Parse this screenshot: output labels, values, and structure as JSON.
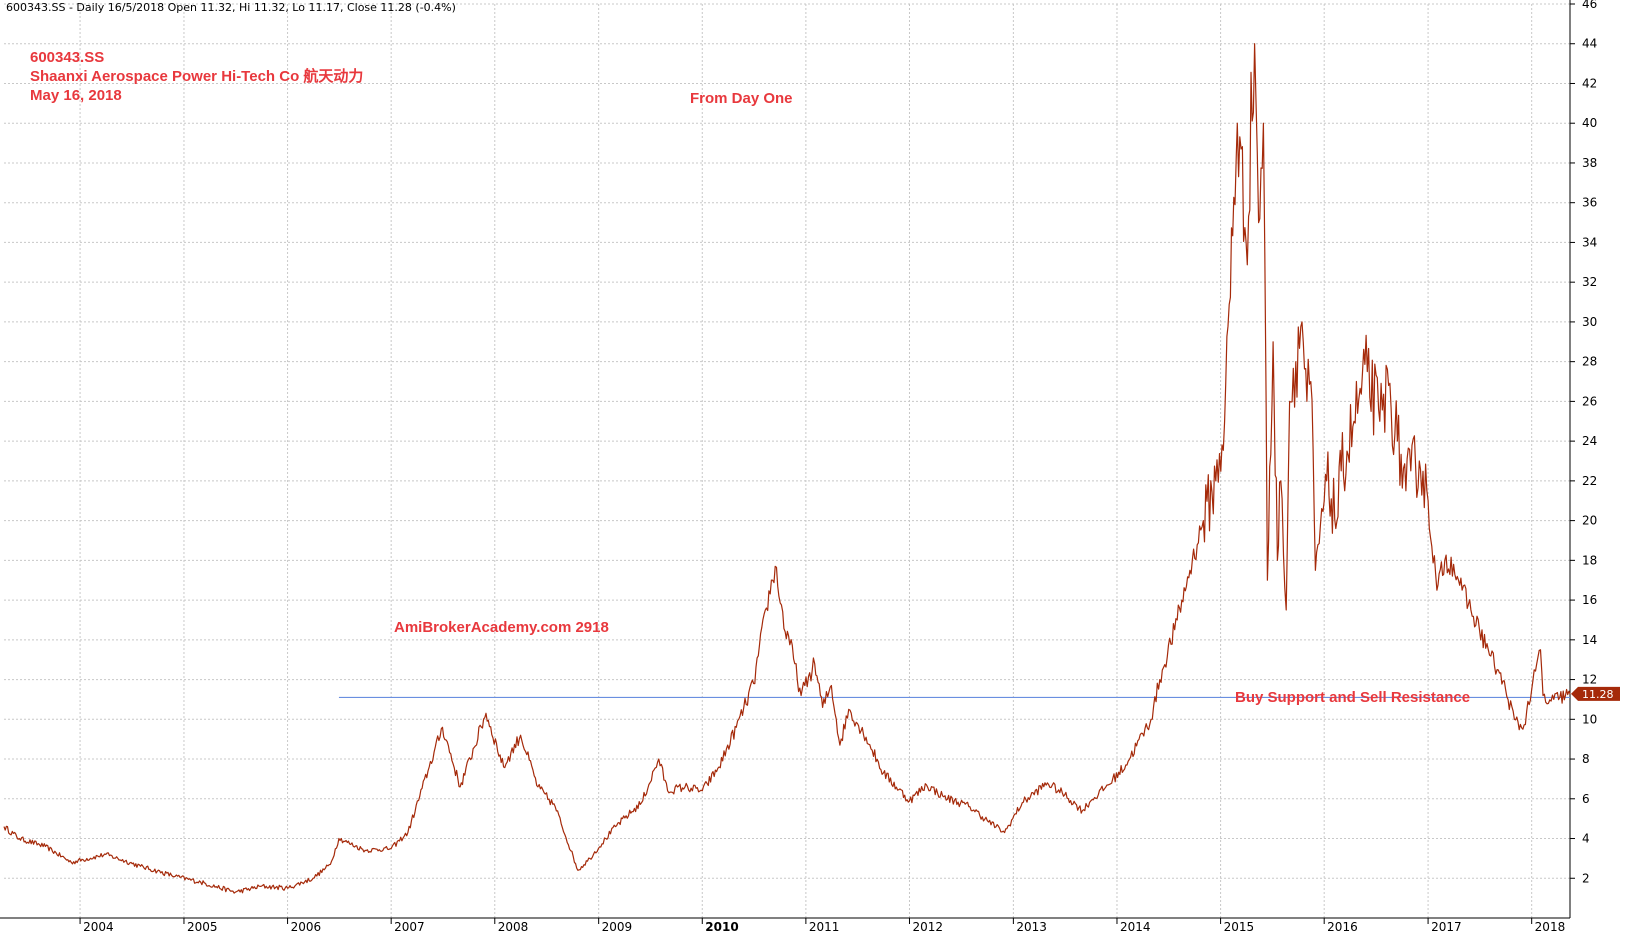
{
  "header": {
    "info": "600343.SS - Daily 16/5/2018 Open 11.32, Hi 11.32, Lo 11.17, Close 11.28 (-0.4%)"
  },
  "annotations": {
    "ticker": "600343.SS",
    "company": "Shaanxi Aerospace Power Hi-Tech Co  航天动力",
    "date": "May 16, 2018",
    "from_day_one": "From Day One",
    "site": "AmiBrokerAcademy.com   2918",
    "support_note": "Buy Support and Sell Resistance"
  },
  "colors": {
    "price_line": "#a52a0a",
    "annotation_red": "#e8383d",
    "support_line": "#6a8fe0",
    "grid": "#c8c8c8",
    "price_badge": "#a52a0a"
  },
  "chart_data": {
    "type": "line",
    "title": "",
    "xlabel": "",
    "ylabel": "",
    "ylim": [
      0,
      46
    ],
    "y_ticks": [
      2,
      4,
      6,
      8,
      10,
      12,
      14,
      16,
      18,
      20,
      22,
      24,
      26,
      28,
      30,
      32,
      34,
      36,
      38,
      40,
      42,
      44,
      46
    ],
    "x_ticks": [
      "2004",
      "2005",
      "2006",
      "2007",
      "2008",
      "2009",
      "2010",
      "2011",
      "2012",
      "2013",
      "2014",
      "2015",
      "2016",
      "2017",
      "2018"
    ],
    "x_range": [
      "2003-04-08",
      "2018-05-16"
    ],
    "grid": true,
    "last_price": "11.28",
    "support_level": 11.1,
    "support_start": "2006-07-01",
    "series": [
      {
        "x": [
          "2003-04-08",
          "2003-06-01",
          "2003-09-01",
          "2003-12-01",
          "2004-04-01",
          "2004-08-01",
          "2004-12-01",
          "2005-03-01",
          "2005-07-01",
          "2005-10-01",
          "2006-01-01",
          "2006-04-01",
          "2006-06-01",
          "2006-07-01",
          "2006-10-01",
          "2007-01-01",
          "2007-03-01",
          "2007-05-15",
          "2007-07-01",
          "2007-09-01",
          "2007-12-01",
          "2008-02-01",
          "2008-04-01",
          "2008-06-01",
          "2008-08-01",
          "2008-10-20",
          "2008-12-01",
          "2009-03-01",
          "2009-06-01",
          "2009-08-01",
          "2009-09-01",
          "2009-11-01",
          "2010-01-01",
          "2010-03-01",
          "2010-05-01",
          "2010-07-01",
          "2010-08-15",
          "2010-09-15",
          "2010-10-20",
          "2010-11-01",
          "2010-12-15",
          "2011-02-01",
          "2011-03-01",
          "2011-04-01",
          "2011-05-01",
          "2011-06-01",
          "2011-08-01",
          "2011-10-01",
          "2012-01-01",
          "2012-03-01",
          "2012-05-01",
          "2012-08-01",
          "2012-10-01",
          "2012-12-01",
          "2013-02-01",
          "2013-05-01",
          "2013-07-01",
          "2013-09-01",
          "2013-10-01",
          "2013-12-01",
          "2014-02-01",
          "2014-05-01",
          "2014-06-01",
          "2014-08-01",
          "2014-09-15",
          "2014-11-01",
          "2014-12-15",
          "2015-01-15",
          "2015-03-01",
          "2015-04-01",
          "2015-05-01",
          "2015-05-15",
          "2015-06-01",
          "2015-06-15",
          "2015-07-05",
          "2015-07-20",
          "2015-08-01",
          "2015-08-20",
          "2015-09-01",
          "2015-10-15",
          "2015-11-01",
          "2015-11-15",
          "2015-12-01",
          "2016-01-10",
          "2016-02-15",
          "2016-03-01",
          "2016-04-15",
          "2016-06-01",
          "2016-07-15",
          "2016-08-15",
          "2016-09-15",
          "2016-10-15",
          "2016-11-01",
          "2016-12-01",
          "2017-01-01",
          "2017-02-01",
          "2017-03-01",
          "2017-04-01",
          "2017-05-01",
          "2017-06-01",
          "2017-07-01",
          "2017-08-01",
          "2017-09-01",
          "2017-10-01",
          "2017-11-01",
          "2017-12-01",
          "2018-01-01",
          "2018-02-01",
          "2018-02-10",
          "2018-03-01",
          "2018-03-20",
          "2018-04-10",
          "2018-05-16"
        ],
        "values": [
          4.6,
          4.0,
          3.6,
          2.8,
          3.2,
          2.6,
          2.1,
          1.8,
          1.3,
          1.6,
          1.5,
          2.0,
          2.7,
          4.0,
          3.4,
          3.5,
          4.3,
          7.6,
          9.6,
          6.6,
          10.3,
          7.6,
          9.2,
          6.6,
          5.6,
          2.4,
          3.0,
          4.6,
          5.8,
          8.0,
          6.4,
          6.6,
          6.4,
          7.6,
          9.6,
          11.8,
          15.6,
          17.7,
          14.4,
          14.2,
          11.2,
          12.8,
          10.6,
          11.7,
          8.7,
          10.5,
          9.1,
          7.3,
          5.9,
          6.7,
          6.1,
          5.6,
          4.9,
          4.3,
          5.8,
          6.8,
          6.2,
          5.4,
          5.9,
          6.7,
          7.7,
          10.0,
          12.0,
          15.0,
          17.5,
          20.0,
          22.0,
          25.0,
          40.0,
          34.0,
          44.0,
          35.0,
          40.0,
          17.0,
          29.0,
          18.0,
          22.0,
          15.5,
          26.0,
          30.0,
          26.0,
          27.0,
          17.5,
          22.0,
          20.0,
          22.5,
          25.0,
          27.5,
          25.0,
          26.8,
          24.0,
          21.5,
          22.5,
          23.0,
          21.0,
          16.5,
          18.0,
          17.8,
          16.5,
          15.5,
          14.5,
          13.5,
          12.5,
          11.5,
          10.0,
          9.5,
          11.5,
          13.5,
          11.2,
          10.8,
          11.0,
          11.1,
          11.28
        ]
      }
    ]
  }
}
